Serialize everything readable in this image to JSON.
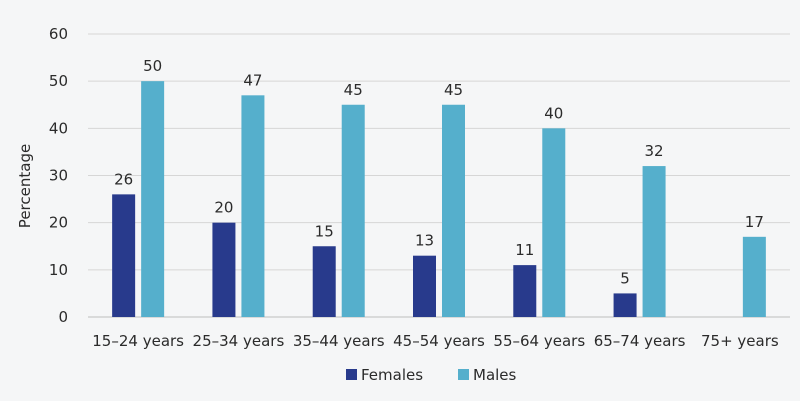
{
  "chart_data": {
    "type": "bar",
    "title": "",
    "xlabel": "",
    "ylabel": "Percentage",
    "ylim": [
      0,
      60
    ],
    "yticks": [
      0,
      10,
      20,
      30,
      40,
      50,
      60
    ],
    "grid": true,
    "legend_position": "bottom",
    "categories": [
      "15–24 years",
      "25–34 years",
      "35–44 years",
      "45–54 years",
      "55–64 years",
      "65–74 years",
      "75+ years"
    ],
    "series": [
      {
        "name": "Females",
        "color": "#283a8c",
        "values": [
          26,
          20,
          15,
          13,
          11,
          5,
          null
        ]
      },
      {
        "name": "Males",
        "color": "#55afcc",
        "values": [
          50,
          47,
          45,
          45,
          40,
          32,
          17
        ]
      }
    ]
  }
}
